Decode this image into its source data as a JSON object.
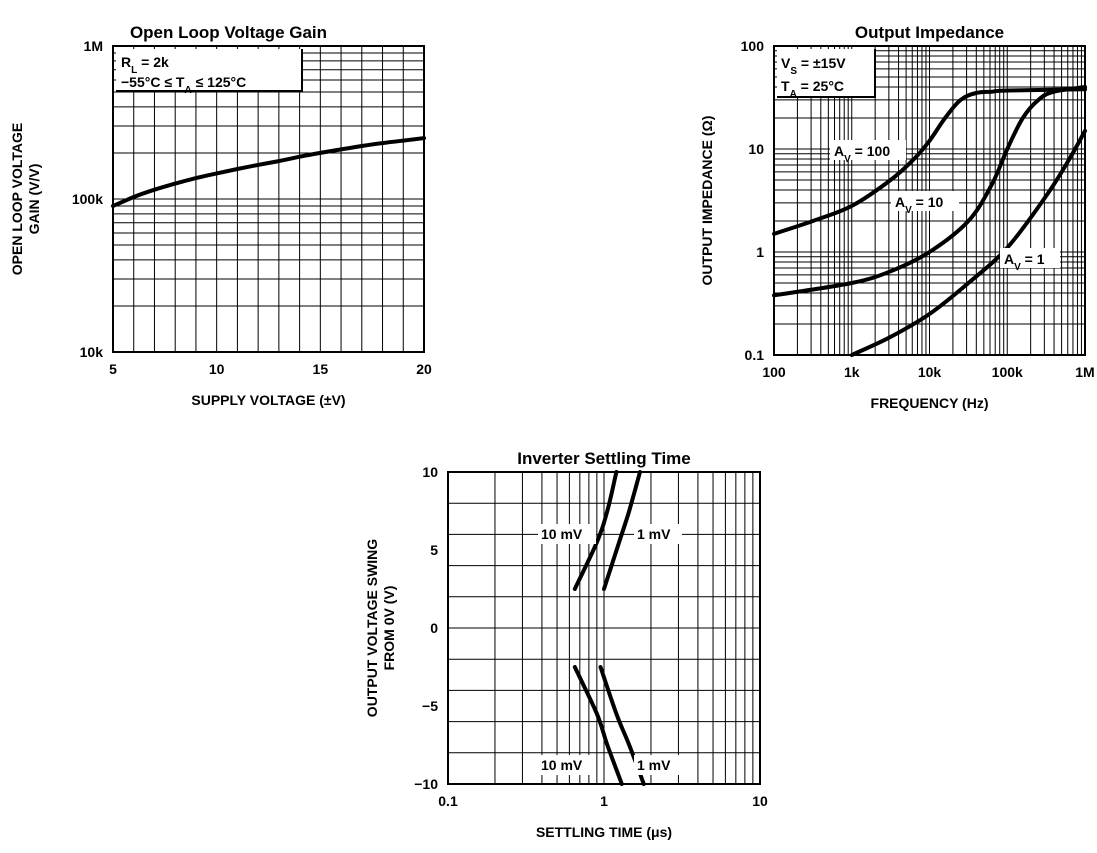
{
  "chart_data": [
    {
      "type": "line",
      "title": "Open Loop Voltage Gain",
      "xlabel": "SUPPLY VOLTAGE (±V)",
      "ylabel": [
        "OPEN LOOP VOLTAGE",
        "GAIN (V/V)"
      ],
      "xscale": "linear",
      "yscale": "log",
      "xlim": [
        5,
        20
      ],
      "ylim": [
        10000,
        1000000
      ],
      "x_ticks": [
        5,
        10,
        15,
        20
      ],
      "x_tick_labels": [
        "5",
        "10",
        "15",
        "20"
      ],
      "y_ticks": [
        10000,
        100000,
        1000000
      ],
      "y_tick_labels": [
        "10k",
        "100k",
        "1M"
      ],
      "grid": true,
      "annotations": [
        "Rₗ = 2k",
        "−55°C ≤ Tₐ ≤ 125°C"
      ],
      "series": [
        {
          "x": [
            5,
            6,
            7,
            8,
            9,
            10,
            11,
            12,
            13,
            14,
            15,
            16,
            17,
            18,
            19,
            20
          ],
          "values": [
            90000,
            103000,
            115000,
            126000,
            137000,
            147000,
            157000,
            167000,
            177000,
            189000,
            200000,
            211000,
            222000,
            232000,
            241000,
            250000
          ]
        }
      ]
    },
    {
      "type": "line",
      "title": "Output Impedance",
      "xlabel": "FREQUENCY (Hz)",
      "ylabel": "OUTPUT IMPEDANCE (Ω)",
      "xscale": "log",
      "yscale": "log",
      "xlim": [
        100,
        1000000
      ],
      "ylim": [
        0.1,
        100
      ],
      "x_ticks": [
        100,
        1000,
        10000,
        100000,
        1000000
      ],
      "x_tick_labels": [
        "100",
        "1k",
        "10k",
        "100k",
        "1M"
      ],
      "y_ticks": [
        0.1,
        1,
        10,
        100
      ],
      "y_tick_labels": [
        "0.1",
        "1",
        "10",
        "100"
      ],
      "grid": true,
      "annotations": [
        "Vₛ = ±15V",
        "Tₐ = 25°C"
      ],
      "series": [
        {
          "name": "Aᵥ = 100",
          "x": [
            100,
            316,
            1000,
            3162,
            6310,
            10000,
            15849,
            25119,
            39811,
            63096,
            100000,
            1000000
          ],
          "values": [
            1.5,
            2.0,
            2.8,
            5.0,
            8.0,
            12.0,
            20.0,
            30.0,
            35.0,
            36.0,
            37.0,
            38.0
          ]
        },
        {
          "name": "Aᵥ = 10",
          "x": [
            100,
            1000,
            3162,
            10000,
            31623,
            63096,
            100000,
            158489,
            251189,
            398107,
            1000000
          ],
          "values": [
            0.38,
            0.5,
            0.65,
            1.0,
            2.0,
            4.5,
            10.0,
            20.0,
            30.0,
            36.0,
            40.0
          ]
        },
        {
          "name": "Aᵥ = 1",
          "x": [
            1000,
            3162,
            10000,
            31623,
            100000,
            316228,
            630957,
            1000000
          ],
          "values": [
            0.1,
            0.15,
            0.25,
            0.5,
            1.1,
            3.5,
            8.0,
            15.0
          ]
        }
      ]
    },
    {
      "type": "line",
      "title": "Inverter Settling Time",
      "xlabel": "SETTLING TIME (μs)",
      "ylabel": [
        "OUTPUT VOLTAGE SWING",
        "FROM 0V (V)"
      ],
      "xscale": "log",
      "yscale": "linear",
      "xlim": [
        0.1,
        10
      ],
      "ylim": [
        -10,
        10
      ],
      "x_ticks": [
        0.1,
        1,
        10
      ],
      "x_tick_labels": [
        "0.1",
        "1",
        "10"
      ],
      "y_ticks": [
        -10,
        -5,
        0,
        5,
        10
      ],
      "y_tick_labels": [
        "−10",
        "−5",
        "0",
        "5",
        "10"
      ],
      "grid": true,
      "curve_labels": [
        {
          "text": "10 mV",
          "x": 0.65,
          "y": 5.4
        },
        {
          "text": "1 mV",
          "x": 1.6,
          "y": 5.4
        },
        {
          "text": "10 mV",
          "x": 0.65,
          "y": -6.4
        },
        {
          "text": "1 mV",
          "x": 1.6,
          "y": -6.4
        }
      ],
      "series": [
        {
          "x": [
            0.65,
            0.9,
            1.05,
            1.2
          ],
          "values": [
            2.5,
            5.5,
            7.5,
            10
          ]
        },
        {
          "x": [
            1.0,
            1.25,
            1.45,
            1.7
          ],
          "values": [
            2.5,
            5.5,
            7.5,
            10
          ]
        },
        {
          "x": [
            0.65,
            0.9,
            1.05,
            1.3
          ],
          "values": [
            -2.5,
            -5.5,
            -7.5,
            -10
          ]
        },
        {
          "x": [
            0.95,
            1.2,
            1.45,
            1.8
          ],
          "values": [
            -2.5,
            -5.5,
            -7.5,
            -10
          ]
        }
      ]
    }
  ]
}
